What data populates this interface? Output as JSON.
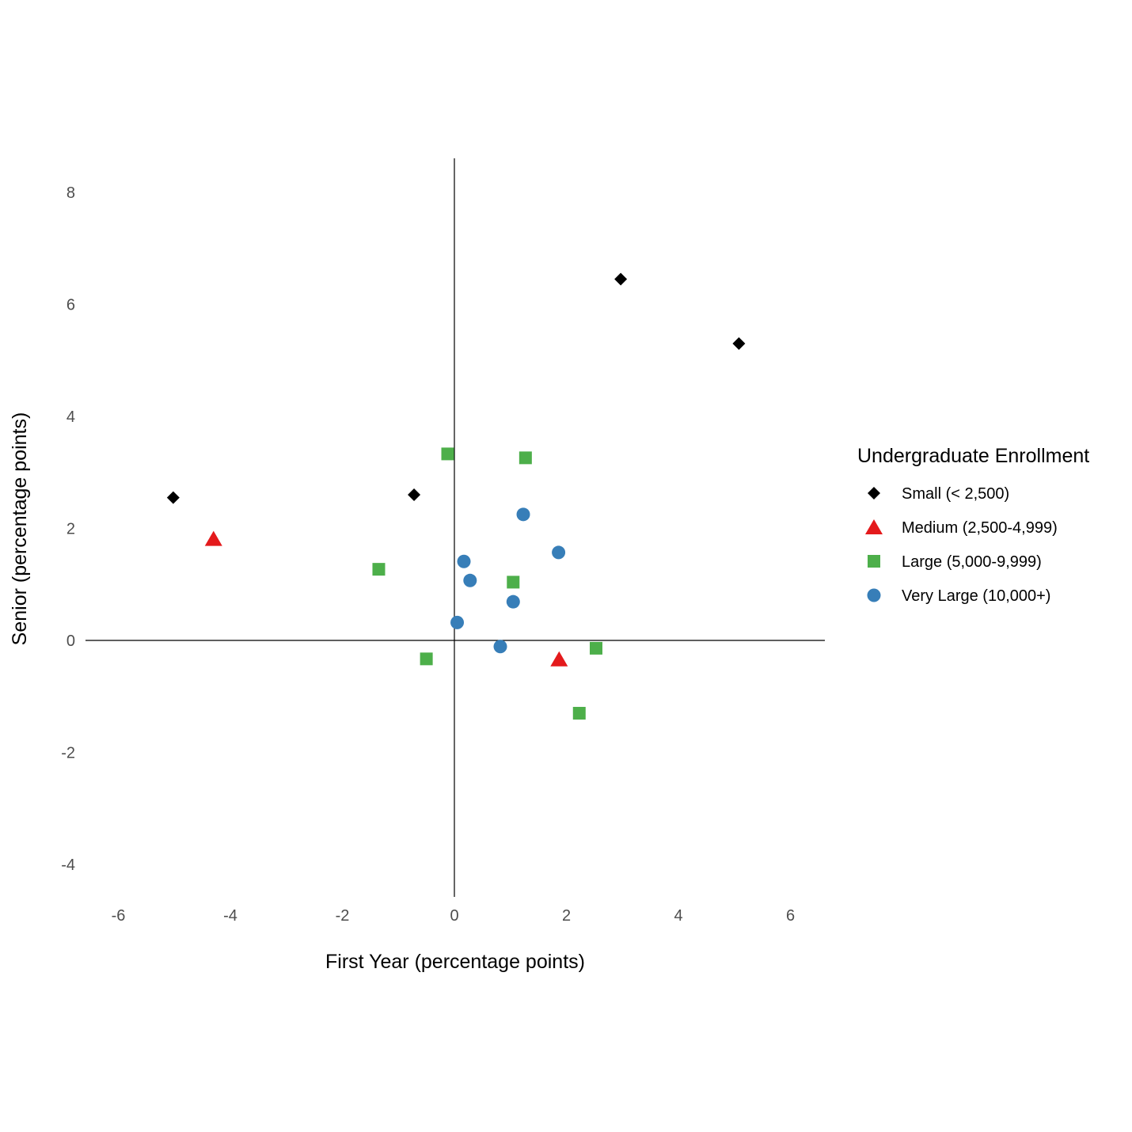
{
  "chart_data": {
    "type": "scatter",
    "title": "",
    "xlabel": "First Year (percentage points)",
    "ylabel": "Senior (percentage points)",
    "xlim": [
      -6,
      6
    ],
    "ylim": [
      -4,
      8
    ],
    "xticks": [
      "-6",
      "-4",
      "-2",
      "0",
      "2",
      "4",
      "6"
    ],
    "yticks": [
      "-4",
      "-2",
      "0",
      "2",
      "4",
      "6",
      "8"
    ],
    "grid": false,
    "legend": {
      "title": "Undergraduate Enrollment",
      "placement": "right"
    },
    "series": [
      {
        "name": "Small (< 2,500)",
        "shape": "diamond",
        "color": "#000000",
        "points": [
          [
            -5.02,
            2.55
          ],
          [
            -0.72,
            2.6
          ],
          [
            2.97,
            6.45
          ],
          [
            5.08,
            5.3
          ]
        ]
      },
      {
        "name": "Medium (2,500-4,999)",
        "shape": "triangle",
        "color": "#e41a1c",
        "points": [
          [
            -4.3,
            1.8
          ],
          [
            1.87,
            -0.35
          ]
        ]
      },
      {
        "name": "Large (5,000-9,999)",
        "shape": "square",
        "color": "#4daf4a",
        "points": [
          [
            -0.12,
            3.33
          ],
          [
            1.27,
            3.26
          ],
          [
            -1.35,
            1.27
          ],
          [
            1.05,
            1.04
          ],
          [
            -0.5,
            -0.33
          ],
          [
            2.53,
            -0.14
          ],
          [
            2.23,
            -1.3
          ]
        ]
      },
      {
        "name": "Very Large (10,000+)",
        "shape": "circle",
        "color": "#377eb8",
        "points": [
          [
            1.23,
            2.25
          ],
          [
            1.86,
            1.57
          ],
          [
            0.17,
            1.41
          ],
          [
            0.28,
            1.07
          ],
          [
            1.05,
            0.69
          ],
          [
            0.05,
            0.32
          ],
          [
            0.82,
            -0.11
          ]
        ]
      }
    ]
  }
}
